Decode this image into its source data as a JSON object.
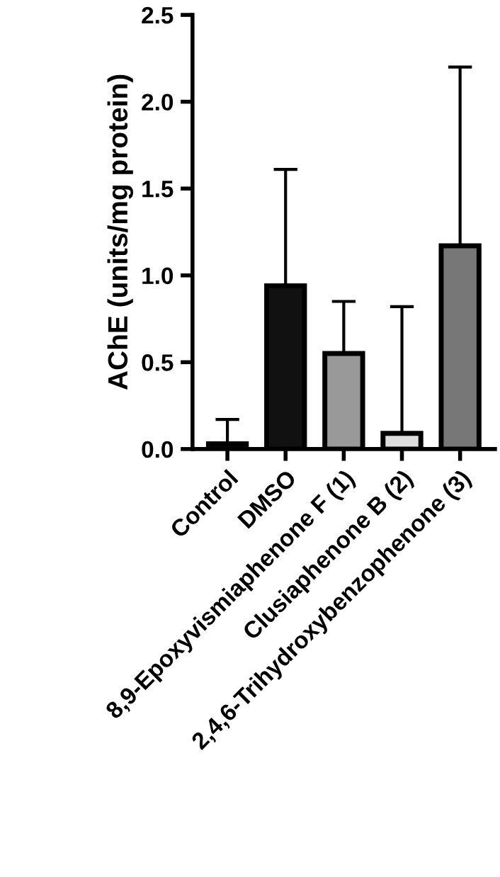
{
  "chart_data": {
    "type": "bar",
    "ylabel": "AChE (units/mg protein)",
    "categories": [
      "Control",
      "DMSO",
      "8,9-Epoxyvismiaphenone F (1)",
      "Clusiaphenone B (2)",
      "2,4,6-Trihydroxybenzophenone (3)"
    ],
    "values": [
      0.03,
      0.94,
      0.55,
      0.09,
      1.17
    ],
    "colors": [
      "#111111",
      "#111111",
      "#999999",
      "#dddddd",
      "#777777"
    ],
    "errors": [
      [
        0.03,
        0.17
      ],
      [
        0.94,
        1.61
      ],
      [
        0.55,
        0.85
      ],
      [
        0.09,
        0.82
      ],
      [
        1.17,
        2.2
      ]
    ],
    "ylim": [
      0,
      2.5
    ],
    "yticks": [
      {
        "value": 0,
        "label": "0.0"
      },
      {
        "value": 0.5,
        "label": "0.5"
      },
      {
        "value": 1,
        "label": "1.0"
      },
      {
        "value": 1.5,
        "label": "1.5"
      },
      {
        "value": 2,
        "label": "2.0"
      },
      {
        "value": 2.5,
        "label": "2.5"
      }
    ],
    "grid": false,
    "legend": false
  }
}
